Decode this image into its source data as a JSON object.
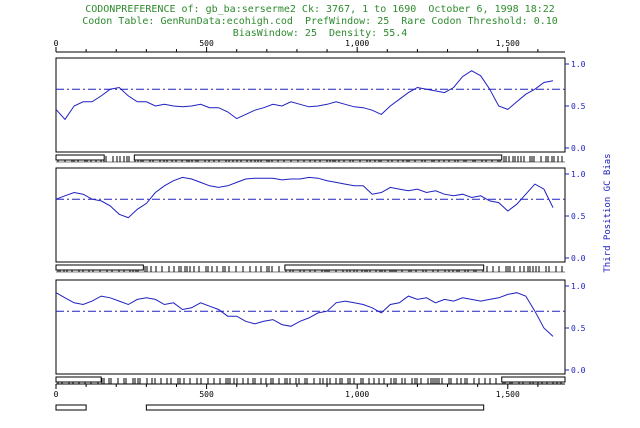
{
  "header": {
    "line1": "CODONPREFERENCE of: gb_ba:serserme2 Ck: 3767, 1 to 1690  October 6, 1998 18:22",
    "line2": "Codon Table: GenRunData:ecohigh.cod  PrefWindow: 25  Rare Codon Threshold: 0.10",
    "line3": "BiasWindow: 25  Density: 55.4"
  },
  "colors": {
    "header": "#2e8b2e",
    "trace": "#2020c0",
    "axis": "#000000"
  },
  "chart_data": {
    "type": "line",
    "xlim": [
      0,
      1690
    ],
    "x_ticks": [
      "0",
      "500",
      "1,000",
      "1,500"
    ],
    "y_right_ticks": [
      "1.0",
      "0.5",
      "0.0"
    ],
    "ylabel": "Third Position GC Bias",
    "panels": [
      {
        "frame": 1,
        "threshold": 0.7,
        "x": [
          0,
          30,
          60,
          90,
          120,
          150,
          180,
          210,
          240,
          270,
          300,
          330,
          360,
          390,
          420,
          450,
          480,
          510,
          540,
          570,
          600,
          630,
          660,
          690,
          720,
          750,
          780,
          810,
          840,
          870,
          900,
          930,
          960,
          990,
          1020,
          1050,
          1080,
          1110,
          1140,
          1170,
          1200,
          1230,
          1260,
          1290,
          1320,
          1350,
          1380,
          1410,
          1440,
          1470,
          1500,
          1530,
          1560,
          1590,
          1620,
          1650
        ],
        "y": [
          0.46,
          0.34,
          0.5,
          0.55,
          0.55,
          0.62,
          0.7,
          0.72,
          0.62,
          0.55,
          0.55,
          0.5,
          0.52,
          0.5,
          0.49,
          0.5,
          0.52,
          0.48,
          0.48,
          0.43,
          0.35,
          0.4,
          0.45,
          0.48,
          0.52,
          0.5,
          0.55,
          0.52,
          0.49,
          0.5,
          0.52,
          0.55,
          0.52,
          0.49,
          0.48,
          0.45,
          0.4,
          0.5,
          0.58,
          0.66,
          0.72,
          0.7,
          0.68,
          0.66,
          0.72,
          0.85,
          0.92,
          0.86,
          0.7,
          0.5,
          0.46,
          0.55,
          0.64,
          0.7,
          0.78,
          0.8
        ]
      },
      {
        "frame": 2,
        "threshold": 0.7,
        "x": [
          0,
          30,
          60,
          90,
          120,
          150,
          180,
          210,
          240,
          270,
          300,
          330,
          360,
          390,
          420,
          450,
          480,
          510,
          540,
          570,
          600,
          630,
          660,
          690,
          720,
          750,
          780,
          810,
          840,
          870,
          900,
          930,
          960,
          990,
          1020,
          1050,
          1080,
          1110,
          1140,
          1170,
          1200,
          1230,
          1260,
          1290,
          1320,
          1350,
          1380,
          1410,
          1440,
          1470,
          1500,
          1530,
          1560,
          1590,
          1620,
          1650
        ],
        "y": [
          0.7,
          0.74,
          0.78,
          0.76,
          0.7,
          0.68,
          0.62,
          0.52,
          0.48,
          0.58,
          0.65,
          0.78,
          0.86,
          0.92,
          0.96,
          0.94,
          0.9,
          0.86,
          0.84,
          0.86,
          0.9,
          0.94,
          0.95,
          0.95,
          0.95,
          0.93,
          0.94,
          0.94,
          0.96,
          0.95,
          0.92,
          0.9,
          0.88,
          0.86,
          0.86,
          0.76,
          0.78,
          0.84,
          0.82,
          0.8,
          0.82,
          0.78,
          0.8,
          0.76,
          0.74,
          0.76,
          0.72,
          0.74,
          0.68,
          0.66,
          0.56,
          0.64,
          0.76,
          0.88,
          0.82,
          0.6
        ]
      },
      {
        "frame": 3,
        "threshold": 0.7,
        "x": [
          0,
          30,
          60,
          90,
          120,
          150,
          180,
          210,
          240,
          270,
          300,
          330,
          360,
          390,
          420,
          450,
          480,
          510,
          540,
          570,
          600,
          630,
          660,
          690,
          720,
          750,
          780,
          810,
          840,
          870,
          900,
          930,
          960,
          990,
          1020,
          1050,
          1080,
          1110,
          1140,
          1170,
          1200,
          1230,
          1260,
          1290,
          1320,
          1350,
          1380,
          1410,
          1440,
          1470,
          1500,
          1530,
          1560,
          1590,
          1620,
          1650
        ],
        "y": [
          0.92,
          0.86,
          0.8,
          0.78,
          0.82,
          0.88,
          0.86,
          0.82,
          0.78,
          0.84,
          0.86,
          0.84,
          0.78,
          0.8,
          0.72,
          0.74,
          0.8,
          0.76,
          0.72,
          0.64,
          0.64,
          0.58,
          0.55,
          0.58,
          0.6,
          0.54,
          0.52,
          0.58,
          0.62,
          0.68,
          0.7,
          0.8,
          0.82,
          0.8,
          0.78,
          0.74,
          0.68,
          0.78,
          0.8,
          0.88,
          0.84,
          0.86,
          0.8,
          0.84,
          0.82,
          0.86,
          0.84,
          0.82,
          0.84,
          0.86,
          0.9,
          0.92,
          0.88,
          0.7,
          0.5,
          0.4
        ]
      }
    ],
    "orf_bars": [
      [
        [
          0,
          160
        ],
        [
          260,
          1480
        ]
      ],
      [
        [
          0,
          290
        ],
        [
          760,
          1420
        ]
      ],
      [
        [
          0,
          150
        ],
        [
          1480,
          1690
        ]
      ],
      [
        [
          0,
          100
        ],
        [
          300,
          1420
        ]
      ]
    ]
  }
}
